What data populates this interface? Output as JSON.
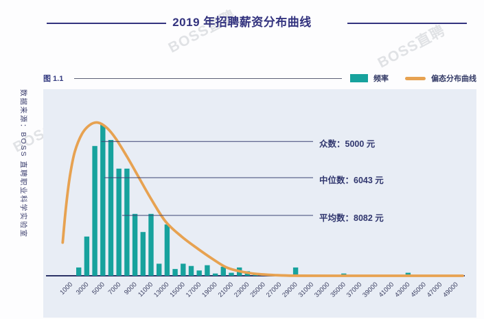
{
  "page_title": "2019 年招聘薪资分布曲线",
  "figure_label": "图 1.1",
  "source_note": "数据来源：BOSS 直聘职业科学实验室",
  "watermark_text": "BOSS直聘",
  "legend": [
    {
      "label": "频率",
      "swatch": "bar-swatch",
      "color": "#17a29d"
    },
    {
      "label": "偏态分布曲线",
      "swatch": "line-swatch",
      "color": "#e7a251"
    }
  ],
  "annotations": [
    {
      "text": "众数：5000 元",
      "line_height_pct": 89,
      "line_start_value": 4800
    },
    {
      "text": "中位数：6043 元",
      "line_height_pct": 65,
      "line_start_value": 5200
    },
    {
      "text": "平均数：8082 元",
      "line_height_pct": 40,
      "line_start_value": 7400
    }
  ],
  "colors": {
    "bar": "#17a29d",
    "curve": "#e7a251",
    "axis": "#2b3266",
    "tick_label": "#3d4163",
    "leader_line": "#3a4273",
    "panel_bg": "#e8edf5",
    "navy_text": "#32327e"
  },
  "chart_data": {
    "type": "bar",
    "title": "2019 年招聘薪资分布曲线",
    "xlabel": "",
    "ylabel": "",
    "x_start": 1000,
    "x_step": 1000,
    "x_tick_labels": [
      "1000",
      "3000",
      "5000",
      "7000",
      "9000",
      "11000",
      "13000",
      "15000",
      "17000",
      "19000",
      "21000",
      "23000",
      "25000",
      "27000",
      "29000",
      "31000",
      "33000",
      "35000",
      "37000",
      "39000",
      "41000",
      "43000",
      "45000",
      "47000",
      "49000"
    ],
    "y_axis_note": "no y ticks shown; bar heights are percent of tallest bar",
    "series": [
      {
        "name": "频率",
        "type": "bar",
        "values_pct_of_max": [
          0,
          5.5,
          26,
          86,
          100,
          90,
          71,
          71,
          41,
          29,
          41,
          8,
          34,
          4.5,
          8,
          6.5,
          3.5,
          7,
          1.5,
          6,
          2,
          5.5,
          3,
          1.2,
          1,
          0.5,
          0,
          0,
          5.5,
          0,
          0,
          0,
          0,
          0,
          1.5,
          0,
          0,
          0,
          0,
          0,
          0,
          0,
          2,
          0,
          0,
          0,
          0,
          0,
          0
        ]
      },
      {
        "name": "偏态分布曲线",
        "type": "line",
        "points_value_pct": [
          [
            0,
            22
          ],
          [
            400,
            45
          ],
          [
            900,
            66
          ],
          [
            1500,
            82
          ],
          [
            2400,
            94
          ],
          [
            3400,
            100
          ],
          [
            4400,
            101.5
          ],
          [
            5500,
            98
          ],
          [
            6600,
            91
          ],
          [
            8000,
            79
          ],
          [
            9500,
            65
          ],
          [
            11000,
            51
          ],
          [
            12800,
            36
          ],
          [
            14800,
            26
          ],
          [
            16800,
            18
          ],
          [
            18700,
            11
          ],
          [
            20400,
            5.5
          ],
          [
            22200,
            2.8
          ],
          [
            24200,
            1.2
          ],
          [
            26500,
            0.4
          ],
          [
            28800,
            0.05
          ],
          [
            34000,
            0
          ],
          [
            49800,
            0
          ]
        ]
      }
    ],
    "stats": {
      "mode": 5000,
      "median": 6043,
      "mean": 8082,
      "unit": "元"
    }
  }
}
